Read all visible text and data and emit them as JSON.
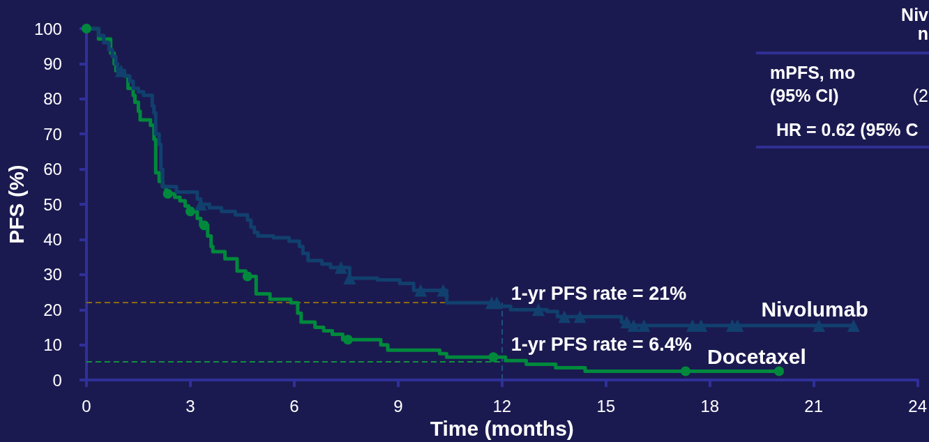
{
  "chart_data": {
    "type": "step",
    "xlabel": "Time (months)",
    "ylabel": "PFS (%)",
    "annotations": [
      "Niv",
      "n",
      "mPFS, mo",
      "(95% CI)",
      "(2",
      "HR = 0.62 (95% C",
      {
        "text": "1-yr PFS rate = 21%",
        "x": 12,
        "y": 21
      },
      {
        "text": "1-yr PFS rate = 6.4%",
        "x": 12,
        "y": 6.4
      }
    ],
    "xlim": [
      0,
      24
    ],
    "xticks": [
      0,
      3,
      6,
      9,
      12,
      15,
      18,
      21,
      24
    ],
    "ylim": [
      0,
      100
    ],
    "yticks": [
      0,
      10,
      20,
      30,
      40,
      50,
      60,
      70,
      80,
      90,
      100
    ],
    "grid": false,
    "series": [
      {
        "name": "Nivolumab",
        "color": "#11406e",
        "x": [
          0,
          0.35,
          0.5,
          0.65,
          0.75,
          0.85,
          0.9,
          1.1,
          1.25,
          1.35,
          1.5,
          1.65,
          1.9,
          1.95,
          2.0,
          2.1,
          2.15,
          2.2,
          2.6,
          3.2,
          3.3,
          3.55,
          3.9,
          4.3,
          4.65,
          4.75,
          4.85,
          4.95,
          5.4,
          5.85,
          6.15,
          6.25,
          6.4,
          6.8,
          7.05,
          7.6,
          8.4,
          9.05,
          9.45,
          10.4,
          11.9,
          12.25,
          13.3,
          13.6,
          15.45,
          15.65,
          22.15
        ],
        "values": [
          100,
          98,
          96,
          94,
          92,
          90,
          88,
          86.5,
          85,
          83,
          82,
          81,
          78,
          76,
          70,
          67,
          60,
          55,
          53.5,
          51.5,
          50,
          49,
          48,
          47,
          45.5,
          43.5,
          42,
          41,
          40.5,
          39.5,
          38,
          36,
          34,
          33,
          32,
          29,
          28.5,
          27.5,
          25.5,
          22,
          21,
          20,
          19.5,
          18,
          16.5,
          15.5,
          15.5
        ]
      },
      {
        "type": "scatter",
        "marker": "triangle",
        "color": "#11406e",
        "x": [
          1.0,
          3.3,
          7.35,
          7.6,
          9.65,
          10.3,
          11.7,
          11.85,
          13.05,
          13.8,
          14.25,
          15.6,
          15.8,
          16.1,
          17.5,
          17.75,
          18.65,
          18.8,
          21.15,
          22.15
        ],
        "values": [
          88,
          50,
          32,
          29,
          25.5,
          25.5,
          22,
          22,
          20,
          18,
          18,
          16.5,
          15.5,
          15.5,
          15.5,
          15.5,
          15.5,
          15.5,
          15.5,
          15.5
        ]
      },
      {
        "name": "Docetaxel",
        "color": "#00893c",
        "x": [
          0,
          0.35,
          0.7,
          0.8,
          0.85,
          1.1,
          1.2,
          1.35,
          1.4,
          1.5,
          1.55,
          1.85,
          1.95,
          2.0,
          2.1,
          2.2,
          2.3,
          2.55,
          2.7,
          2.85,
          2.95,
          3.2,
          3.3,
          3.5,
          3.6,
          3.65,
          4.0,
          4.35,
          4.6,
          4.9,
          5.3,
          5.9,
          6.1,
          6.2,
          6.6,
          6.85,
          7.1,
          7.4,
          8.5,
          8.7,
          10.2,
          10.4,
          12.1,
          12.7,
          13.55,
          14.4,
          20.0
        ],
        "values": [
          100,
          97,
          93,
          90,
          88,
          86.5,
          83,
          81,
          79,
          76.5,
          74,
          72.5,
          68.5,
          59,
          56.5,
          55,
          53,
          52,
          51,
          49.5,
          48,
          46,
          44,
          41,
          38,
          36.5,
          34.5,
          31,
          29.5,
          24.5,
          23,
          22,
          19,
          16.5,
          15,
          14,
          13,
          11.5,
          10,
          8.5,
          7.5,
          6.5,
          5.5,
          4.5,
          3.5,
          2.5,
          2.5
        ]
      },
      {
        "type": "scatter",
        "marker": "circle",
        "color": "#00893c",
        "x": [
          0,
          2.35,
          3.0,
          3.4,
          4.65,
          7.55,
          11.75,
          17.3,
          20.0
        ],
        "values": [
          100,
          53,
          48,
          44,
          29.5,
          11.5,
          6.5,
          2.5,
          2.5
        ]
      }
    ],
    "ref_lines": [
      {
        "axis": "y",
        "value": 22,
        "color": "#8c6a12",
        "line_style": "dashed"
      },
      {
        "axis": "y",
        "value": 5.3,
        "color": "#12903e",
        "line_style": "dashed"
      },
      {
        "axis": "x",
        "value": 12,
        "color": "#1f4f7e",
        "line_style": "dashed"
      }
    ]
  }
}
